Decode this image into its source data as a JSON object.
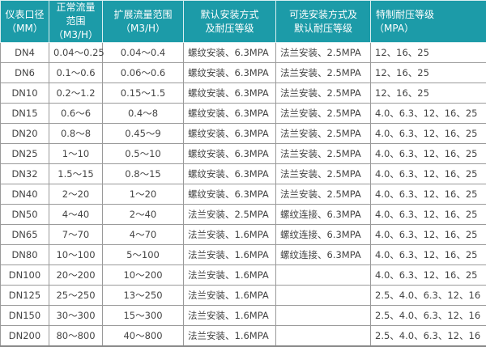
{
  "header": [
    {
      "line1": "仪表口径",
      "line2": "（MM）"
    },
    {
      "line1": "正常流量范围",
      "line2": "（M3/H）"
    },
    {
      "line1": "扩展流量范围",
      "line2": "（M3/H）"
    },
    {
      "line1": "默认安装方式",
      "line2": "及耐压等级"
    },
    {
      "line1": "可选安装方式及",
      "line2": "默认耐压等级"
    },
    {
      "line1": "特制耐压等级",
      "line2": "（MPA）"
    }
  ],
  "rows": [
    [
      "DN4",
      "0.04～0.25",
      "0.04～0.4",
      "螺纹安装、6.3MPA",
      "法兰安装、2.5MPA",
      "12、16、25"
    ],
    [
      "DN6",
      "0.1～0.6",
      "0.06～0.6",
      "螺纹安装、6.3MPA",
      "法兰安装、2.5MPA",
      "12、16、25"
    ],
    [
      "DN10",
      "0.2～1.2",
      "0.15～1.5",
      "螺纹安装、6.3MPA",
      "法兰安装、2.5MPA",
      "12、16、25"
    ],
    [
      "DN15",
      "0.6～6",
      "0.4～8",
      "螺纹安装、6.3MPA",
      "法兰安装、2.5MPA",
      "4.0、6.3、12、16、25"
    ],
    [
      "DN20",
      "0.8～8",
      "0.45～9",
      "螺纹安装、6.3MPA",
      "法兰安装、2.5MPA",
      "4.0、6.3、12、16、25"
    ],
    [
      "DN25",
      "1～10",
      "0.5～10",
      "螺纹安装、6.3MPA",
      "法兰安装、2.5MPA",
      "4.0、6.3、12、16、25"
    ],
    [
      "DN32",
      "1.5～15",
      "0.8～15",
      "螺纹安装、6.3MPA",
      "法兰安装、2.5MPA",
      "4.0、6.3、12、16、25"
    ],
    [
      "DN40",
      "2～20",
      "1～20",
      "螺纹安装、6.3MPA",
      "法兰安装、2.5MPA",
      "4.0、6.3、12、16、25"
    ],
    [
      "DN50",
      "4～40",
      "2～40",
      "法兰安装、2.5MPA",
      "螺纹连接、6.3MPA",
      "4.0、6.3、12、16、25"
    ],
    [
      "DN65",
      "7～70",
      "4～70",
      "法兰安装、1.6MPA",
      "螺纹连接、6.3MPA",
      "4.0、6.3、12、16、25"
    ],
    [
      "DN80",
      "10～100",
      "5～100",
      "法兰安装、1.6MPA",
      "螺纹连接、6.3MPA",
      "4.0、6.3、12、16、25"
    ],
    [
      "DN100",
      "20～200",
      "10～200",
      "法兰安装、1.6MPA",
      "",
      "4.0、6.3、12、16、25"
    ],
    [
      "DN125",
      "25～250",
      "13～250",
      "法兰安装、1.6MPA",
      "",
      "2.5、4.0、6.3、12、16"
    ],
    [
      "DN150",
      "30～300",
      "15～300",
      "法兰安装、1.6MPA",
      "",
      "2.5、4.0、6.3、12、16"
    ],
    [
      "DN200",
      "80～800",
      "40～800",
      "法兰安装、1.6MPA",
      "",
      "2.5、4.0、6.3、12、16"
    ]
  ],
  "colors": {
    "header_bg": "#1c9ba8",
    "header_text": "#ffffff",
    "cell_text": "#444444",
    "border": "#9a9a9a"
  }
}
